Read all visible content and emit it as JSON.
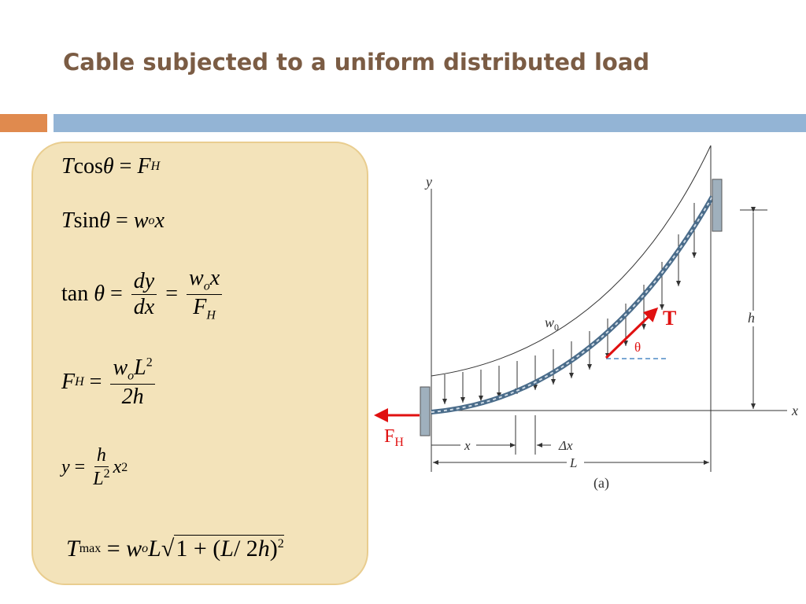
{
  "title": "Cable subjected to a uniform distributed load",
  "equations": [
    [
      "T",
      " cos",
      "θ",
      " = ",
      "F",
      "H"
    ],
    [
      "T",
      " sin",
      "θ",
      " = ",
      "w",
      "o",
      "x"
    ],
    [
      "tan ",
      "θ",
      " = ",
      "dy",
      "dx",
      " = ",
      "w",
      "o",
      "x",
      "F",
      "H"
    ],
    [
      "F",
      "H",
      " = ",
      "w",
      "o",
      "L",
      "2",
      "2h"
    ],
    [
      "y",
      " = ",
      "h",
      "L",
      "2",
      "x",
      "2"
    ],
    [
      "T",
      "max",
      " = ",
      "w",
      "o",
      "L",
      "1 + (",
      "L",
      "/ 2",
      "h",
      ")",
      "2"
    ]
  ],
  "diagram": {
    "y_axis": "y",
    "x_axis": "x",
    "height": "h",
    "load": "w",
    "load_sub": "0",
    "tension": "T",
    "angle": "θ",
    "horizontal_force": "F",
    "horizontal_force_sub": "H",
    "segment": "x",
    "increment": "Δx",
    "span": "L",
    "caption": "(a)"
  }
}
